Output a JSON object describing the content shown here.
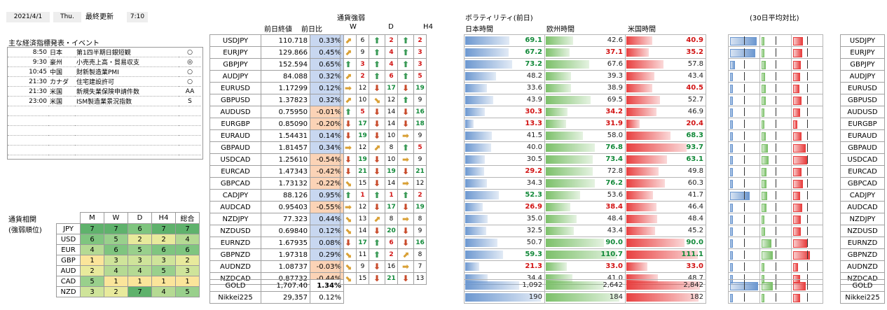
{
  "header": {
    "date": "2021/4/1",
    "weekday": "Thu.",
    "update_label": "最終更新",
    "time": "7:10"
  },
  "events": {
    "title": "主な経済指標発表・イベント",
    "rows": [
      {
        "time": "8:50",
        "country": "日本",
        "name": "第1四半期日銀短観",
        "mark": "○"
      },
      {
        "time": "9:30",
        "country": "豪州",
        "name": "小売売上高・貿易収支",
        "mark": "◎"
      },
      {
        "time": "10:45",
        "country": "中国",
        "name": "財新製造業PMI",
        "mark": "○"
      },
      {
        "time": "21:30",
        "country": "カナダ",
        "name": "住宅建設許可",
        "mark": "○"
      },
      {
        "time": "21:30",
        "country": "米国",
        "name": "新規失業保険申請件数",
        "mark": "AA"
      },
      {
        "time": "23:00",
        "country": "米国",
        "name": "ISM製造業景況指数",
        "mark": "S"
      },
      {
        "time": "",
        "country": "",
        "name": "",
        "mark": ""
      },
      {
        "time": "",
        "country": "",
        "name": "",
        "mark": ""
      },
      {
        "time": "",
        "country": "",
        "name": "",
        "mark": ""
      },
      {
        "time": "",
        "country": "",
        "name": "",
        "mark": ""
      },
      {
        "time": "",
        "country": "",
        "name": "",
        "mark": ""
      }
    ]
  },
  "correlation": {
    "title1": "通貨相関",
    "title2": "(強弱順位)",
    "headers": [
      "M",
      "W",
      "D",
      "H4",
      "総合"
    ],
    "rows": [
      {
        "cur": "JPY",
        "vals": [
          "7",
          "7",
          "6",
          "7",
          "7"
        ]
      },
      {
        "cur": "USD",
        "vals": [
          "6",
          "5",
          "2",
          "2",
          "4"
        ]
      },
      {
        "cur": "EUR",
        "vals": [
          "4",
          "6",
          "5",
          "6",
          "6"
        ]
      },
      {
        "cur": "GBP",
        "vals": [
          "1",
          "3",
          "3",
          "3",
          "2"
        ]
      },
      {
        "cur": "AUD",
        "vals": [
          "2",
          "4",
          "4",
          "5",
          "3"
        ]
      },
      {
        "cur": "CAD",
        "vals": [
          "5",
          "1",
          "1",
          "1",
          "1"
        ]
      },
      {
        "cur": "NZD",
        "vals": [
          "3",
          "2",
          "7",
          "4",
          "5"
        ]
      }
    ],
    "colors": {
      "1": "#fbe59a",
      "2": "#e8ea9c",
      "3": "#cfe49a",
      "4": "#b5da93",
      "5": "#99d08c",
      "6": "#7fc57f",
      "7": "#5fb26c"
    }
  },
  "prices": {
    "headers": {
      "close": "前日終値",
      "change": "前日比"
    },
    "rows": [
      {
        "pair": "USDJPY",
        "close": "110.718",
        "chg": "0.33%"
      },
      {
        "pair": "EURJPY",
        "close": "129.866",
        "chg": "0.45%"
      },
      {
        "pair": "GBPJPY",
        "close": "152.594",
        "chg": "0.65%"
      },
      {
        "pair": "AUDJPY",
        "close": "84.088",
        "chg": "0.32%"
      },
      {
        "pair": "EURUSD",
        "close": "1.17299",
        "chg": "0.12%"
      },
      {
        "pair": "GBPUSD",
        "close": "1.37823",
        "chg": "0.32%"
      },
      {
        "pair": "AUDUSD",
        "close": "0.75950",
        "chg": "-0.01%"
      },
      {
        "pair": "EURGBP",
        "close": "0.85090",
        "chg": "-0.20%"
      },
      {
        "pair": "EURAUD",
        "close": "1.54431",
        "chg": "0.14%"
      },
      {
        "pair": "GBPAUD",
        "close": "1.81457",
        "chg": "0.34%"
      },
      {
        "pair": "USDCAD",
        "close": "1.25610",
        "chg": "-0.54%"
      },
      {
        "pair": "EURCAD",
        "close": "1.47343",
        "chg": "-0.42%"
      },
      {
        "pair": "GBPCAD",
        "close": "1.73132",
        "chg": "-0.22%"
      },
      {
        "pair": "CADJPY",
        "close": "88.126",
        "chg": "0.95%"
      },
      {
        "pair": "AUDCAD",
        "close": "0.95403",
        "chg": "-0.55%"
      },
      {
        "pair": "NZDJPY",
        "close": "77.323",
        "chg": "0.44%"
      },
      {
        "pair": "NZDUSD",
        "close": "0.69840",
        "chg": "0.12%"
      },
      {
        "pair": "EURNZD",
        "close": "1.67935",
        "chg": "0.08%"
      },
      {
        "pair": "GBPNZD",
        "close": "1.97318",
        "chg": "0.29%"
      },
      {
        "pair": "AUDNZD",
        "close": "1.08737",
        "chg": "-0.03%"
      },
      {
        "pair": "NZDCAD",
        "close": "0.87732",
        "chg": "-0.44%"
      }
    ],
    "extra": [
      {
        "pair": "GOLD",
        "close": "1,707.40",
        "chg": "1.34%"
      },
      {
        "pair": "Nikkei225",
        "close": "29,357",
        "chg": "0.12%"
      }
    ]
  },
  "strength": {
    "title": "通貨強弱",
    "headers": [
      "W",
      "D",
      "H4"
    ],
    "rows": [
      [
        [
          "ne",
          "6",
          "d"
        ],
        [
          "up",
          "2",
          "r"
        ],
        [
          "up",
          "2",
          "r"
        ]
      ],
      [
        [
          "ne",
          "9",
          "d"
        ],
        [
          "up",
          "4",
          "r"
        ],
        [
          "up",
          "3",
          "r"
        ]
      ],
      [
        [
          "up",
          "3",
          "r"
        ],
        [
          "up",
          "4",
          "r"
        ],
        [
          "up",
          "3",
          "r"
        ]
      ],
      [
        [
          "ne",
          "2",
          "r"
        ],
        [
          "up",
          "6",
          "r"
        ],
        [
          "up",
          "5",
          "r"
        ]
      ],
      [
        [
          "rt",
          "12",
          "d"
        ],
        [
          "dn",
          "17",
          "g"
        ],
        [
          "dn",
          "19",
          "g"
        ]
      ],
      [
        [
          "ne",
          "10",
          "d"
        ],
        [
          "se",
          "12",
          "d"
        ],
        [
          "up",
          "9",
          "d"
        ]
      ],
      [
        [
          "up",
          "5",
          "r"
        ],
        [
          "dn",
          "14",
          "d"
        ],
        [
          "dn",
          "16",
          "g"
        ]
      ],
      [
        [
          "dn",
          "17",
          "g"
        ],
        [
          "dn",
          "14",
          "d"
        ],
        [
          "dn",
          "18",
          "g"
        ]
      ],
      [
        [
          "dn",
          "19",
          "g"
        ],
        [
          "dn",
          "10",
          "d"
        ],
        [
          "rt",
          "9",
          "d"
        ]
      ],
      [
        [
          "rt",
          "12",
          "d"
        ],
        [
          "ne",
          "8",
          "d"
        ],
        [
          "up",
          "5",
          "r"
        ]
      ],
      [
        [
          "dn",
          "19",
          "g"
        ],
        [
          "dn",
          "10",
          "d"
        ],
        [
          "rt",
          "9",
          "d"
        ]
      ],
      [
        [
          "dn",
          "21",
          "g"
        ],
        [
          "dn",
          "19",
          "g"
        ],
        [
          "dn",
          "21",
          "g"
        ]
      ],
      [
        [
          "se",
          "15",
          "d"
        ],
        [
          "dn",
          "14",
          "d"
        ],
        [
          "rt",
          "12",
          "d"
        ]
      ],
      [
        [
          "up",
          "1",
          "r"
        ],
        [
          "up",
          "1",
          "r"
        ],
        [
          "up",
          "2",
          "r"
        ]
      ],
      [
        [
          "rt",
          "12",
          "d"
        ],
        [
          "dn",
          "17",
          "g"
        ],
        [
          "dn",
          "19",
          "g"
        ]
      ],
      [
        [
          "se",
          "13",
          "d"
        ],
        [
          "ne",
          "8",
          "d"
        ],
        [
          "rt",
          "8",
          "d"
        ]
      ],
      [
        [
          "se",
          "14",
          "d"
        ],
        [
          "dn",
          "20",
          "g"
        ],
        [
          "dn",
          "9",
          "d"
        ]
      ],
      [
        [
          "dn",
          "17",
          "g"
        ],
        [
          "up",
          "6",
          "r"
        ],
        [
          "dn",
          "16",
          "g"
        ]
      ],
      [
        [
          "se",
          "11",
          "d"
        ],
        [
          "up",
          "2",
          "r"
        ],
        [
          "ne",
          "8",
          "d"
        ]
      ],
      [
        [
          "se",
          "9",
          "d"
        ],
        [
          "dn",
          "16",
          "d"
        ],
        [
          "rt",
          "7",
          "d"
        ]
      ],
      [
        [
          "se",
          "15",
          "d"
        ],
        [
          "dn",
          "21",
          "g"
        ],
        [
          "dn",
          "13",
          "d"
        ]
      ]
    ]
  },
  "volatility": {
    "title": "ボラティリティ(前日)",
    "avg_title": "(30日平均対比)",
    "sessions": [
      "日本時間",
      "欧州時間",
      "米国時間"
    ],
    "scale": 120,
    "rows": [
      {
        "jp": "69.1",
        "eu": "42.6",
        "us": "40.9",
        "jc": "g",
        "ec": "d",
        "uc": "r"
      },
      {
        "jp": "67.2",
        "eu": "37.1",
        "us": "35.2",
        "jc": "g",
        "ec": "r",
        "uc": "r"
      },
      {
        "jp": "73.2",
        "eu": "67.6",
        "us": "57.8",
        "jc": "g",
        "ec": "d",
        "uc": "d"
      },
      {
        "jp": "48.2",
        "eu": "39.3",
        "us": "43.4",
        "jc": "d",
        "ec": "d",
        "uc": "d"
      },
      {
        "jp": "33.6",
        "eu": "38.9",
        "us": "40.5",
        "jc": "d",
        "ec": "d",
        "uc": "r"
      },
      {
        "jp": "43.9",
        "eu": "69.5",
        "us": "52.7",
        "jc": "d",
        "ec": "d",
        "uc": "d"
      },
      {
        "jp": "30.3",
        "eu": "34.2",
        "us": "46.9",
        "jc": "r",
        "ec": "r",
        "uc": "d"
      },
      {
        "jp": "13.3",
        "eu": "31.9",
        "us": "20.4",
        "jc": "r",
        "ec": "r",
        "uc": "r"
      },
      {
        "jp": "41.5",
        "eu": "58.0",
        "us": "68.3",
        "jc": "d",
        "ec": "d",
        "uc": "g"
      },
      {
        "jp": "40.0",
        "eu": "76.8",
        "us": "93.7",
        "jc": "d",
        "ec": "g",
        "uc": "g"
      },
      {
        "jp": "30.5",
        "eu": "73.4",
        "us": "63.1",
        "jc": "d",
        "ec": "g",
        "uc": "g"
      },
      {
        "jp": "29.2",
        "eu": "72.8",
        "us": "49.8",
        "jc": "r",
        "ec": "d",
        "uc": "d"
      },
      {
        "jp": "34.3",
        "eu": "76.2",
        "us": "60.3",
        "jc": "d",
        "ec": "g",
        "uc": "d"
      },
      {
        "jp": "52.3",
        "eu": "53.6",
        "us": "41.7",
        "jc": "g",
        "ec": "d",
        "uc": "d"
      },
      {
        "jp": "26.9",
        "eu": "38.4",
        "us": "46.4",
        "jc": "r",
        "ec": "r",
        "uc": "d"
      },
      {
        "jp": "35.0",
        "eu": "48.4",
        "us": "48.4",
        "jc": "d",
        "ec": "d",
        "uc": "d"
      },
      {
        "jp": "32.5",
        "eu": "43.4",
        "us": "45.2",
        "jc": "d",
        "ec": "d",
        "uc": "d"
      },
      {
        "jp": "50.7",
        "eu": "90.0",
        "us": "90.0",
        "jc": "d",
        "ec": "g",
        "uc": "g"
      },
      {
        "jp": "59.3",
        "eu": "110.7",
        "us": "111.1",
        "jc": "g",
        "ec": "g",
        "uc": "g"
      },
      {
        "jp": "21.3",
        "eu": "33.0",
        "us": "33.0",
        "jc": "r",
        "ec": "r",
        "uc": "r"
      },
      {
        "jp": "34.4",
        "eu": "41.0",
        "us": "48.7",
        "jc": "d",
        "ec": "d",
        "uc": "d"
      }
    ],
    "extra": [
      {
        "jp": "1,092",
        "eu": "2,642",
        "us": "2,842",
        "jf": 0.7,
        "ef": 0.75,
        "uf": 0.95
      },
      {
        "jp": "190",
        "eu": "184",
        "us": "182",
        "jf": 0.98,
        "ef": 0.95,
        "uf": 0.94
      }
    ],
    "bar_colors": {
      "jp": "#6d98d0",
      "eu": "#7cc06a",
      "us": "#e84040"
    }
  },
  "avg30": {
    "rows": [
      [
        0.9,
        0.05,
        0.3
      ],
      [
        0.85,
        0.05,
        0.28
      ],
      [
        0.12,
        0.1,
        0.22
      ],
      [
        0.06,
        0.08,
        0.2
      ],
      [
        0.04,
        0.1,
        0.18
      ],
      [
        0.04,
        0.1,
        0.25
      ],
      [
        0.03,
        0.05,
        0.2
      ],
      [
        0.02,
        0.03,
        0.1
      ],
      [
        0.03,
        0.1,
        0.25
      ],
      [
        0.03,
        0.18,
        0.4
      ],
      [
        0.05,
        0.2,
        0.45
      ],
      [
        0.03,
        0.12,
        0.25
      ],
      [
        0.03,
        0.12,
        0.3
      ],
      [
        0.65,
        0.15,
        0.2
      ],
      [
        0.03,
        0.12,
        0.28
      ],
      [
        0.03,
        0.06,
        0.22
      ],
      [
        0.04,
        0.08,
        0.22
      ],
      [
        0.06,
        0.3,
        0.45
      ],
      [
        0.04,
        0.35,
        0.55
      ],
      [
        0.02,
        0.05,
        0.12
      ],
      [
        0.03,
        0.06,
        0.2
      ]
    ],
    "extra": [
      [
        0.95,
        0.35,
        0.4
      ],
      [
        0.02,
        0.05,
        0.2
      ]
    ]
  }
}
